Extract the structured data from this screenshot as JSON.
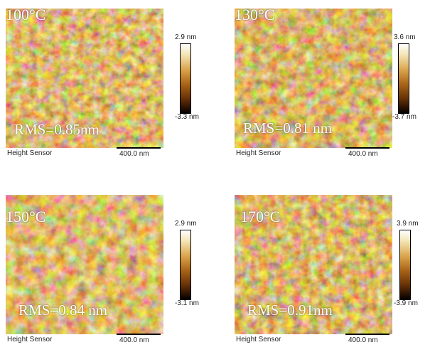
{
  "colorbar": {
    "label_top_unit": "nm"
  },
  "panels": [
    {
      "temperature": "100°C",
      "rms": "RMS=0.85nm",
      "cbar_top": "2.9 nm",
      "cbar_bottom": "-3.3 nm",
      "sensor": "Height Sensor",
      "scale": "400.0 nm"
    },
    {
      "temperature": "130°C",
      "rms": "RMS=0.81 nm",
      "cbar_top": "3.6 nm",
      "cbar_bottom": "-3.7 nm",
      "sensor": "Height Sensor",
      "scale": "400.0 nm"
    },
    {
      "temperature": "150°C",
      "rms": "RMS=0.84 nm",
      "cbar_top": "2.9 nm",
      "cbar_bottom": "-3.1 nm",
      "sensor": "Height Sensor",
      "scale": "400.0 nm"
    },
    {
      "temperature": "170°C",
      "rms": "RMS=0.91nm",
      "cbar_top": "3.9 nm",
      "cbar_bottom": "-3.9 nm",
      "sensor": "Height Sensor",
      "scale": "400.0 nm"
    }
  ]
}
